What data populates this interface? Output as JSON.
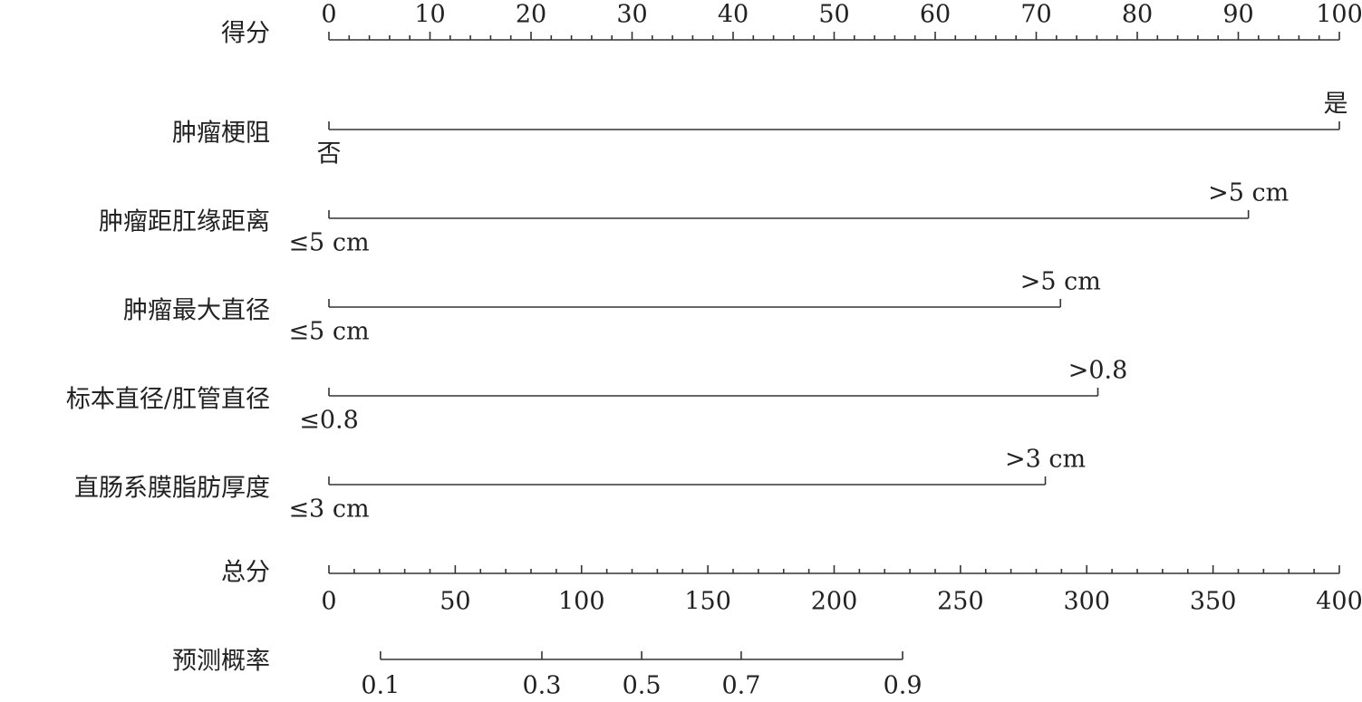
{
  "chart_data": {
    "type": "nomogram",
    "points_axis": {
      "label": "得分",
      "xlim": [
        0,
        100
      ],
      "xticks": [
        0,
        10,
        20,
        30,
        40,
        50,
        60,
        70,
        80,
        90,
        100
      ],
      "minor_ticks": [
        2,
        4,
        6,
        8,
        12,
        14,
        16,
        18,
        22,
        24,
        26,
        28,
        32,
        34,
        36,
        38,
        42,
        44,
        46,
        48,
        52,
        54,
        56,
        58,
        62,
        64,
        66,
        68,
        72,
        74,
        76,
        78,
        82,
        84,
        86,
        88,
        92,
        94,
        96,
        98
      ]
    },
    "variables": [
      {
        "label": "肿瘤梗阻",
        "levels": [
          "否",
          "是"
        ],
        "points": [
          0,
          100
        ]
      },
      {
        "label": "肿瘤距肛缘距离",
        "levels": [
          "≤5 cm",
          ">5 cm"
        ],
        "points": [
          0,
          91.0
        ]
      },
      {
        "label": "肿瘤最大直径",
        "levels": [
          "≤5 cm",
          ">5 cm"
        ],
        "points": [
          0,
          72.4
        ]
      },
      {
        "label": "标本直径/肛管直径",
        "levels": [
          "≤0.8",
          ">0.8"
        ],
        "points": [
          0,
          76.1
        ]
      },
      {
        "label": "直肠系膜脂肪厚度",
        "levels": [
          "≤3 cm",
          ">3 cm"
        ],
        "points": [
          0,
          70.9
        ]
      }
    ],
    "total_axis": {
      "label": "总分",
      "xlim": [
        0,
        400
      ],
      "xticks": [
        0,
        50,
        100,
        150,
        200,
        250,
        300,
        350,
        400
      ],
      "minor_ticks": [
        10,
        20,
        30,
        40,
        60,
        70,
        80,
        90,
        110,
        120,
        130,
        140,
        160,
        170,
        180,
        190,
        210,
        220,
        230,
        240,
        260,
        270,
        280,
        290,
        310,
        320,
        330,
        340,
        360,
        370,
        380,
        390
      ]
    },
    "probability_axis": {
      "label": "预测概率",
      "ticks": [
        0.1,
        0.3,
        0.5,
        0.7,
        0.9
      ],
      "total_points_at": [
        20.4,
        84.3,
        123.8,
        163.2,
        227.1
      ]
    }
  }
}
